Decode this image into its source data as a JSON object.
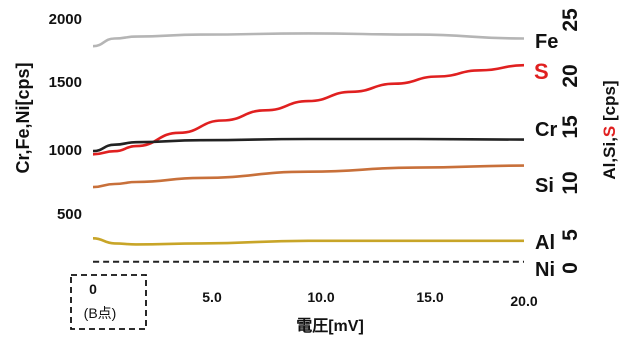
{
  "chart_data": {
    "type": "line",
    "title": "",
    "xlabel": "電圧[mV]",
    "ylabel_left": "Cr,Fe,Ni[cps]",
    "ylabel_right_parts": [
      "Al,Si,",
      "S",
      " [cps]"
    ],
    "x_ticks": [
      "0",
      "5.0",
      "10.0",
      "15.0",
      "20.0"
    ],
    "x_tick_values": [
      0,
      5,
      10,
      15,
      20
    ],
    "x_annotation": "(B点)",
    "y_left_ticks": [
      "500",
      "1000",
      "1500",
      "2000"
    ],
    "y_left_tick_values": [
      500,
      1000,
      1500,
      2000
    ],
    "y_right_ticks": [
      "0",
      "5",
      "10",
      "15",
      "20",
      "25"
    ],
    "y_right_tick_values": [
      0,
      5,
      10,
      15,
      20,
      25
    ],
    "xlim": [
      0,
      20
    ],
    "y_left_lim": [
      0,
      2000
    ],
    "y_right_lim": [
      0,
      25
    ],
    "grid": false,
    "series": [
      {
        "name": "Fe",
        "axis": "left",
        "color": "#b5b5b5",
        "label_color": "#111111",
        "dashed": false,
        "x": [
          0,
          1,
          2,
          5,
          10,
          15,
          20
        ],
        "y": [
          1780,
          1840,
          1855,
          1870,
          1880,
          1870,
          1840
        ]
      },
      {
        "name": "S",
        "axis": "right",
        "color": "#e02020",
        "label_color": "#e02020",
        "dashed": false,
        "x": [
          0,
          1,
          2,
          4,
          6,
          8,
          10,
          12,
          14,
          16,
          18,
          20
        ],
        "y": [
          11.2,
          11.5,
          12.0,
          13.3,
          14.5,
          15.5,
          16.4,
          17.3,
          18.1,
          18.8,
          19.4,
          19.9
        ]
      },
      {
        "name": "Cr",
        "axis": "left",
        "color": "#222222",
        "label_color": "#111111",
        "dashed": false,
        "x": [
          0,
          1,
          2,
          5,
          10,
          15,
          20
        ],
        "y": [
          960,
          1010,
          1030,
          1045,
          1055,
          1055,
          1050
        ]
      },
      {
        "name": "Si",
        "axis": "right",
        "color": "#c8703a",
        "label_color": "#111111",
        "dashed": false,
        "x": [
          0,
          1,
          2,
          5,
          10,
          15,
          20
        ],
        "y": [
          8.0,
          8.3,
          8.5,
          8.9,
          9.5,
          9.9,
          10.1
        ]
      },
      {
        "name": "Al",
        "axis": "right",
        "color": "#c8a528",
        "label_color": "#111111",
        "dashed": false,
        "x": [
          0,
          1,
          2,
          5,
          10,
          15,
          20
        ],
        "y": [
          3.0,
          2.5,
          2.4,
          2.5,
          2.75,
          2.75,
          2.75
        ]
      },
      {
        "name": "Ni",
        "axis": "left",
        "color": "#222222",
        "label_color": "#111111",
        "dashed": true,
        "x": [
          0,
          20
        ],
        "y": [
          95,
          95
        ]
      }
    ]
  }
}
